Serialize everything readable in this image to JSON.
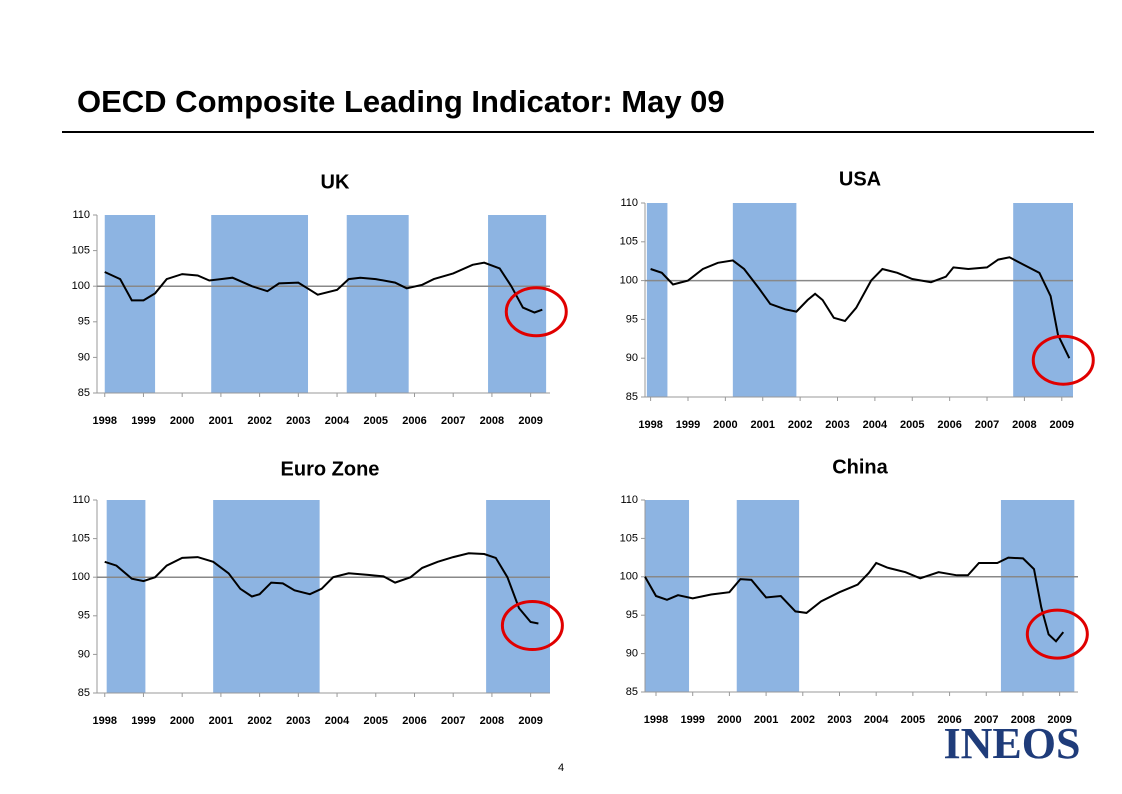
{
  "title": "OECD Composite Leading Indicator: May 09",
  "page_number": "4",
  "logo": "INEOS",
  "chart_data": [
    {
      "type": "line",
      "title": "UK",
      "color": "#000000",
      "shade_color": "#8db4e2",
      "reference_line": 100,
      "xlim": [
        1997.8,
        2009.5
      ],
      "xticks": [
        1998,
        1999,
        2000,
        2001,
        2002,
        2003,
        2004,
        2005,
        2006,
        2007,
        2008,
        2009
      ],
      "ylim": [
        85,
        110
      ],
      "yticks": [
        85,
        90,
        95,
        100,
        105,
        110
      ],
      "shaded_periods": [
        [
          1998.0,
          1999.3
        ],
        [
          2000.75,
          2003.25
        ],
        [
          2004.25,
          2005.85
        ],
        [
          2007.9,
          2009.4
        ]
      ],
      "x": [
        1998,
        1998.4,
        1998.7,
        1999,
        1999.3,
        1999.6,
        2000,
        2000.4,
        2000.7,
        2001,
        2001.3,
        2001.8,
        2002.2,
        2002.5,
        2003,
        2003.3,
        2003.5,
        2004,
        2004.3,
        2004.6,
        2005,
        2005.5,
        2005.8,
        2006.2,
        2006.5,
        2007,
        2007.5,
        2007.8,
        2008.2,
        2008.5,
        2008.8,
        2009.1,
        2009.3
      ],
      "values": [
        102,
        101,
        98,
        98,
        99,
        101,
        101.7,
        101.5,
        100.8,
        101,
        101.2,
        100,
        99.3,
        100.4,
        100.5,
        99.5,
        98.8,
        99.5,
        101,
        101.2,
        101,
        100.5,
        99.7,
        100.2,
        101,
        101.8,
        103,
        103.3,
        102.5,
        100,
        97,
        96.3,
        96.7
      ]
    },
    {
      "type": "line",
      "title": "USA",
      "color": "#000000",
      "shade_color": "#8db4e2",
      "reference_line": 100,
      "xlim": [
        1997.85,
        2009.3
      ],
      "xticks": [
        1998,
        1999,
        2000,
        2001,
        2002,
        2003,
        2004,
        2005,
        2006,
        2007,
        2008,
        2009
      ],
      "ylim": [
        85,
        110
      ],
      "yticks": [
        85,
        90,
        95,
        100,
        105,
        110
      ],
      "shaded_periods": [
        [
          1997.9,
          1998.45
        ],
        [
          2000.2,
          2001.9
        ],
        [
          2007.7,
          2009.3
        ]
      ],
      "x": [
        1998,
        1998.3,
        1998.6,
        1999,
        1999.4,
        1999.8,
        2000.2,
        2000.5,
        2000.9,
        2001.2,
        2001.6,
        2001.9,
        2002.2,
        2002.4,
        2002.6,
        2002.9,
        2003.2,
        2003.5,
        2003.9,
        2004.2,
        2004.6,
        2005,
        2005.5,
        2005.9,
        2006.1,
        2006.5,
        2007,
        2007.3,
        2007.6,
        2008,
        2008.4,
        2008.7,
        2008.9,
        2009.2
      ],
      "values": [
        101.5,
        101,
        99.5,
        100,
        101.5,
        102.3,
        102.6,
        101.5,
        99,
        97,
        96.3,
        96,
        97.5,
        98.3,
        97.5,
        95.2,
        94.8,
        96.5,
        100,
        101.5,
        101,
        100.2,
        99.8,
        100.5,
        101.7,
        101.5,
        101.7,
        102.7,
        103,
        102,
        101,
        98,
        93,
        90
      ]
    },
    {
      "type": "line",
      "title": "Euro Zone",
      "color": "#000000",
      "shade_color": "#8db4e2",
      "reference_line": 100,
      "xlim": [
        1997.8,
        2009.5
      ],
      "xticks": [
        1998,
        1999,
        2000,
        2001,
        2002,
        2003,
        2004,
        2005,
        2006,
        2007,
        2008,
        2009
      ],
      "ylim": [
        85,
        110
      ],
      "yticks": [
        85,
        90,
        95,
        100,
        105,
        110
      ],
      "shaded_periods": [
        [
          1998.05,
          1999.05
        ],
        [
          2000.8,
          2003.55
        ],
        [
          2007.85,
          2009.5
        ]
      ],
      "x": [
        1998,
        1998.3,
        1998.7,
        1999,
        1999.3,
        1999.6,
        2000,
        2000.4,
        2000.8,
        2001.2,
        2001.5,
        2001.8,
        2002,
        2002.3,
        2002.6,
        2002.9,
        2003.3,
        2003.6,
        2003.9,
        2004.3,
        2004.8,
        2005.2,
        2005.5,
        2005.9,
        2006.2,
        2006.6,
        2007,
        2007.4,
        2007.8,
        2008.1,
        2008.4,
        2008.7,
        2009,
        2009.2
      ],
      "values": [
        102,
        101.5,
        99.8,
        99.5,
        100,
        101.5,
        102.5,
        102.6,
        102,
        100.5,
        98.5,
        97.5,
        97.8,
        99.3,
        99.2,
        98.3,
        97.8,
        98.5,
        100,
        100.5,
        100.3,
        100.1,
        99.3,
        100,
        101.2,
        102,
        102.6,
        103.1,
        103,
        102.5,
        100,
        96,
        94.2,
        94
      ]
    },
    {
      "type": "line",
      "title": "China",
      "color": "#000000",
      "shade_color": "#8db4e2",
      "reference_line": 100,
      "xlim": [
        1997.7,
        2009.5
      ],
      "xticks": [
        1998,
        1999,
        2000,
        2001,
        2002,
        2003,
        2004,
        2005,
        2006,
        2007,
        2008,
        2009
      ],
      "ylim": [
        85,
        110
      ],
      "yticks": [
        85,
        90,
        95,
        100,
        105,
        110
      ],
      "shaded_periods": [
        [
          1997.7,
          1998.9
        ],
        [
          2000.2,
          2001.9
        ],
        [
          2007.4,
          2009.4
        ]
      ],
      "x": [
        1997.7,
        1998,
        1998.3,
        1998.6,
        1999,
        1999.5,
        2000,
        2000.3,
        2000.6,
        2001,
        2001.4,
        2001.8,
        2002.1,
        2002.5,
        2003,
        2003.5,
        2003.8,
        2004,
        2004.3,
        2004.8,
        2005.2,
        2005.7,
        2006.2,
        2006.5,
        2006.8,
        2007.3,
        2007.6,
        2008,
        2008.3,
        2008.5,
        2008.7,
        2008.9,
        2009.1
      ],
      "values": [
        100,
        97.5,
        97,
        97.6,
        97.2,
        97.7,
        98,
        99.7,
        99.6,
        97.3,
        97.5,
        95.5,
        95.3,
        96.8,
        98,
        99,
        100.5,
        101.8,
        101.2,
        100.6,
        99.8,
        100.6,
        100.2,
        100.2,
        101.8,
        101.8,
        102.5,
        102.4,
        101,
        96,
        92.5,
        91.6,
        92.8
      ]
    }
  ]
}
